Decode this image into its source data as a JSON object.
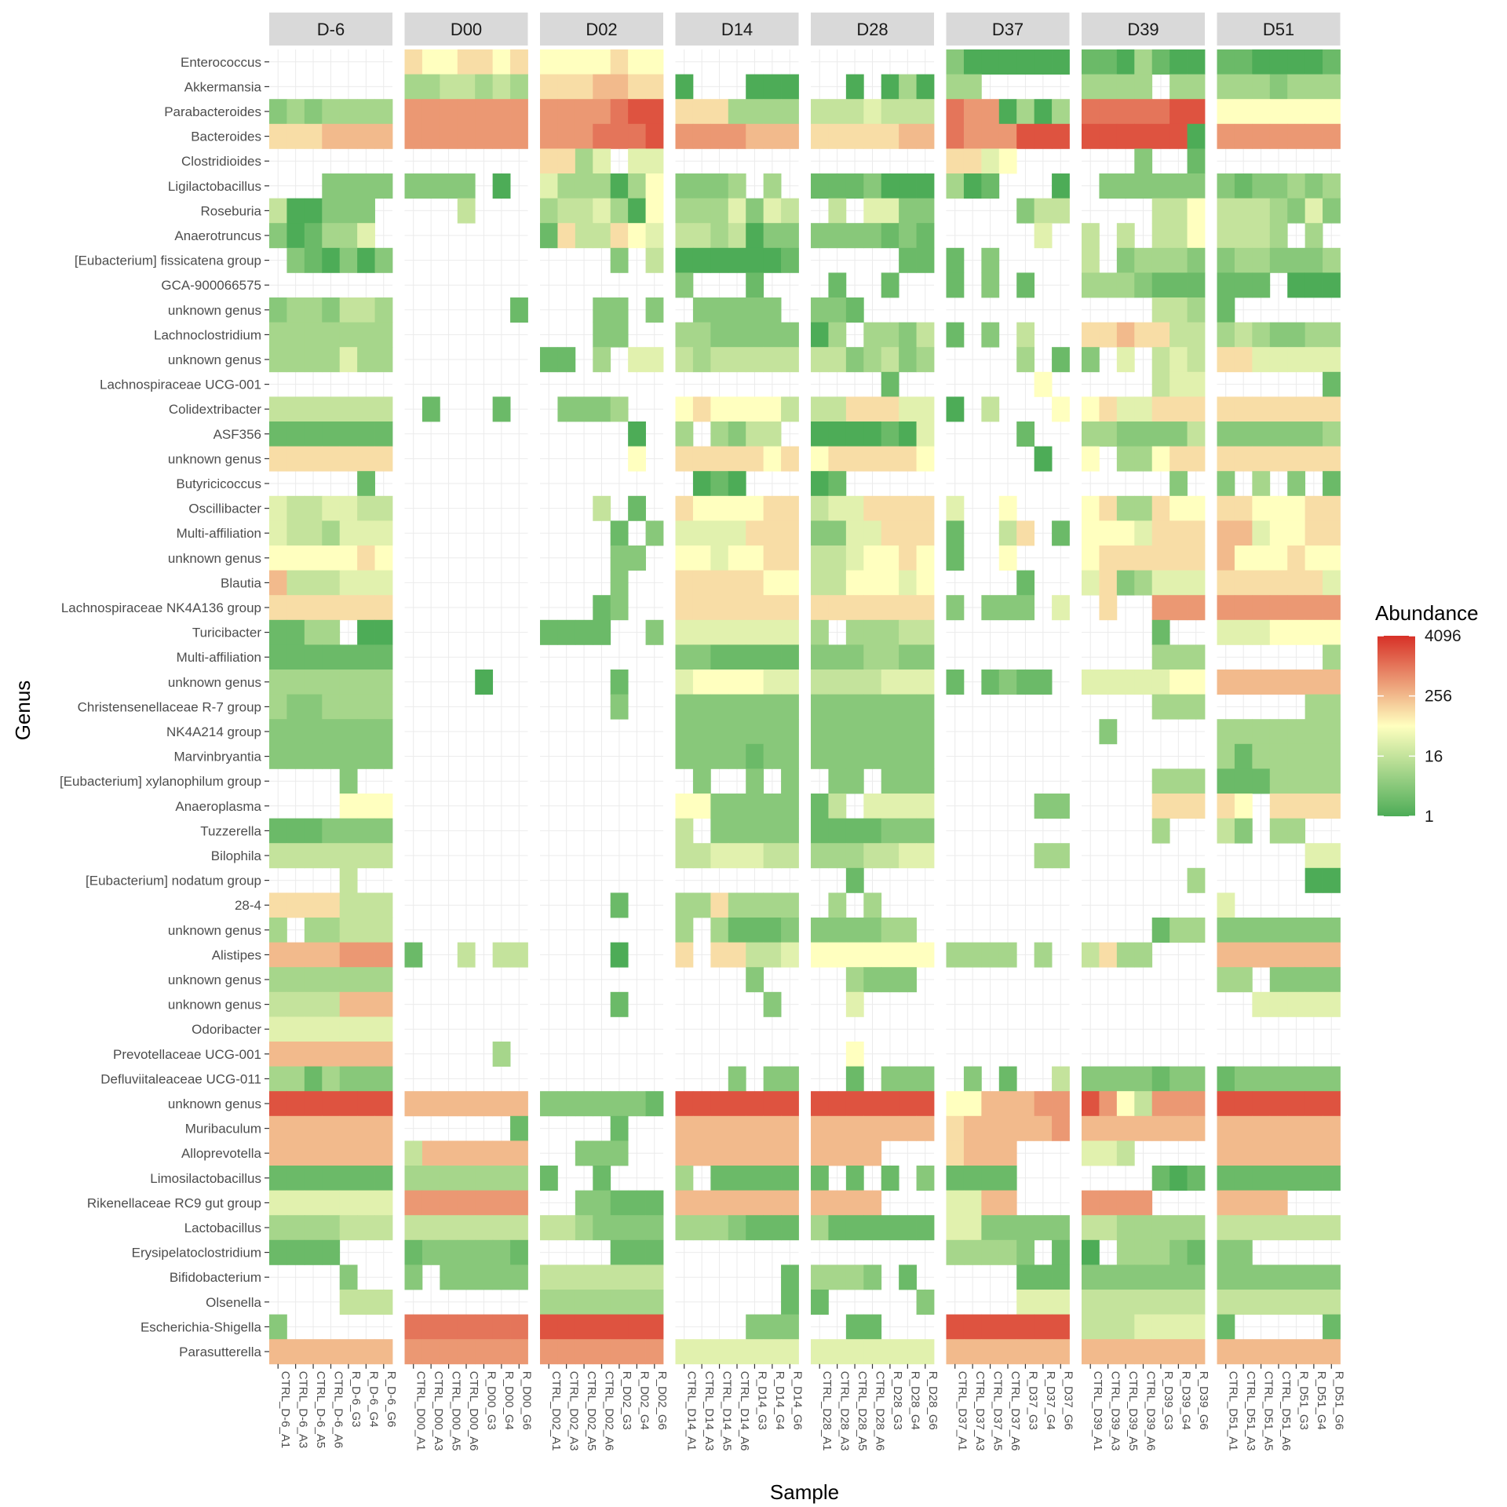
{
  "chart_data": {
    "type": "heatmap",
    "xlabel": "Sample",
    "ylabel": "Genus",
    "legend": {
      "title": "Abundance",
      "placement": "right",
      "ticks": [
        1,
        16,
        256,
        4096
      ],
      "scale": "log2"
    },
    "color_scale": {
      "low": "#4dac57",
      "mid": "#ffffbf",
      "high": "#d73027",
      "missing": "#ffffff"
    },
    "facets": [
      "D-6",
      "D00",
      "D02",
      "D14",
      "D28",
      "D37",
      "D39",
      "D51"
    ],
    "samples": [
      [
        "CTRL_D-6_A1",
        "CTRL_D-6_A3",
        "CTRL_D-6_A5",
        "CTRL_D-6_A6",
        "R_D-6_G3",
        "R_D-6_G4",
        "R_D-6_G6"
      ],
      [
        "CTRL_D00_A1",
        "CTRL_D00_A3",
        "CTRL_D00_A5",
        "CTRL_D00_A6",
        "R_D00_G3",
        "R_D00_G4",
        "R_D00_G6"
      ],
      [
        "CTRL_D02_A1",
        "CTRL_D02_A3",
        "CTRL_D02_A5",
        "CTRL_D02_A6",
        "R_D02_G3",
        "R_D02_G4",
        "R_D02_G6"
      ],
      [
        "CTRL_D14_A1",
        "CTRL_D14_A3",
        "CTRL_D14_A5",
        "CTRL_D14_A6",
        "R_D14_G3",
        "R_D14_G4",
        "R_D14_G6"
      ],
      [
        "CTRL_D28_A1",
        "CTRL_D28_A3",
        "CTRL_D28_A5",
        "CTRL_D28_A6",
        "R_D28_G3",
        "R_D28_G4",
        "R_D28_G6"
      ],
      [
        "CTRL_D37_A1",
        "CTRL_D37_A3",
        "CTRL_D37_A5",
        "CTRL_D37_A6",
        "R_D37_G3",
        "R_D37_G4",
        "R_D37_G6"
      ],
      [
        "CTRL_D39_A1",
        "CTRL_D39_A3",
        "CTRL_D39_A5",
        "CTRL_D39_A6",
        "R_D39_G3",
        "R_D39_G4",
        "R_D39_G6"
      ],
      [
        "CTRL_D51_A1",
        "CTRL_D51_A3",
        "CTRL_D51_A5",
        "CTRL_D51_A6",
        "R_D51_G3",
        "R_D51_G4",
        "R_D51_G6"
      ]
    ],
    "genera": [
      "Enterococcus",
      "Akkermansia",
      "Parabacteroides",
      "Bacteroides",
      "Clostridioides",
      "Ligilactobacillus",
      "Roseburia",
      "Anaerotruncus",
      "[Eubacterium] fissicatena group",
      "GCA-900066575",
      "unknown genus",
      "Lachnoclostridium",
      "unknown genus",
      "Lachnospiraceae UCG-001",
      "Colidextribacter",
      "ASF356",
      "unknown genus",
      "Butyricicoccus",
      "Oscillibacter",
      "Multi-affiliation",
      "unknown genus",
      "Blautia",
      "Lachnospiraceae NK4A136 group",
      "Turicibacter",
      "Multi-affiliation",
      "unknown genus",
      "Christensenellaceae R-7 group",
      "NK4A214 group",
      "Marvinbryantia",
      "[Eubacterium] xylanophilum group",
      "Anaeroplasma",
      "Tuzzerella",
      "Bilophila",
      "[Eubacterium] nodatum group",
      "28-4",
      "unknown genus",
      "Alistipes",
      "unknown genus",
      "unknown genus",
      "Odoribacter",
      "Prevotellaceae UCG-001",
      "Defluviitaleaceae UCG-011",
      "unknown genus",
      "Muribaculum",
      "Alloprevotella",
      "Limosilactobacillus",
      "Rikenellaceae RC9 gut group",
      "Lactobacillus",
      "Erysipelatoclostridium",
      "Bifidobacterium",
      "Olsenella",
      "Escherichia-Shigella",
      "Parasutterella"
    ],
    "log2_abundance": [
      [
        "-------",
        "7667767",
        "6666766",
        "-------",
        "-------",
        "2000000",
        "1103100",
        "1100001"
      ],
      [
        "-------",
        "3344343",
        "7778877",
        "0---000",
        "--0-030",
        "33-----",
        "3333-33",
        "3332333"
      ],
      [
        "2323333",
        "9999999",
        "9999ABB",
        "7773333",
        "4445444",
        "A990303",
        "AAAAABB",
        "6666666"
      ],
      [
        "7778888",
        "9999999",
        "999AAAB",
        "9999888",
        "7777788",
        "A999BBB",
        "BBBBBB0",
        "9999999"
      ],
      [
        "-------",
        "-------",
        "7735-55",
        "-------",
        "-------",
        "7756---",
        "---2--1",
        "-------"
      ],
      [
        "---2222",
        "2222-0-",
        "5333036",
        "2223-3-",
        "1112000",
        "301---0",
        "-222222",
        "2122323"
      ],
      [
        "400222-",
        "---4---",
        "3445306",
        "3335254",
        "-4-5522",
        "----244",
        "----446",
        "4443252"
      ],
      [
        "201335-",
        "-------",
        "1744765",
        "4434022",
        "2222121",
        "-----5-",
        "4-4-446",
        "4443-3-"
      ],
      [
        "-210202",
        "-------",
        "----2-4",
        "0000001",
        "-----11",
        "1-2----",
        "4-23332",
        "2332223"
      ],
      [
        "-------",
        "-------",
        "-------",
        "2---1--",
        "-1--1--",
        "1-2-1--",
        "3332111",
        "111-000"
      ],
      [
        "2332443",
        "------1",
        "---22-2",
        "-22222-",
        "221----",
        "-------",
        "----443",
        "1------"
      ],
      [
        "3333333",
        "-------",
        "---22--",
        "3322222",
        "03-3324",
        "1-2-4--",
        "7787744",
        "3432233"
      ],
      [
        "3333533",
        "-------",
        "11-3-55",
        "4344444",
        "4423423",
        "----3-1",
        "2-5-454",
        "7755555"
      ],
      [
        "-------",
        "-------",
        "-------",
        "-------",
        "----1--",
        "-----6-",
        "----455",
        "------1"
      ],
      [
        "4444444",
        "-1---1-",
        "-2223--",
        "6766664",
        "4477755",
        "0-4---6",
        "6755777",
        "7777777"
      ],
      [
        "1111111",
        "-------",
        "-----0-",
        "3-3244-",
        "0000105",
        "----1--",
        "3322224",
        "2222223"
      ],
      [
        "7777777",
        "-------",
        "-----6-",
        "7777767",
        "6777776",
        "-----0-",
        "6-33677",
        "7777777"
      ],
      [
        "-----1-",
        "-------",
        "-------",
        "-010---",
        "01-----",
        "-------",
        "-----2-",
        "2-3-2-1"
      ],
      [
        "5445544",
        "-------",
        "---4-1-",
        "7666677",
        "4557777",
        "5--6---",
        "6733766",
        "7766677"
      ],
      [
        "5443555",
        "-------",
        "----1-2",
        "5555777",
        "2255777",
        "1--47-1",
        "6665777",
        "8856677"
      ],
      [
        "6666676",
        "-------",
        "----22-",
        "6656677",
        "4456676",
        "1--6---",
        "6777777",
        "8666766"
      ],
      [
        "8444555",
        "-------",
        "----2--",
        "7777766",
        "4466656",
        "----1--",
        "5723555",
        "7777775"
      ],
      [
        "7777777",
        "-------",
        "---12--",
        "7777777",
        "7777777",
        "2-222-5",
        "-7--999",
        "9999999"
      ],
      [
        "1133-00",
        "-------",
        "1111--2",
        "5555555",
        "3-33344",
        "-------",
        "----1--",
        "5556666"
      ],
      [
        "1111111",
        "-------",
        "-------",
        "2211111",
        "2223322",
        "-------",
        "----333",
        "------3"
      ],
      [
        "3333333",
        "----0--",
        "----1--",
        "5666655",
        "4444555",
        "1-1211-",
        "5555566",
        "8888888"
      ],
      [
        "3223333",
        "-------",
        "----2--",
        "2222222",
        "2222222",
        "-------",
        "----333",
        "-----33"
      ],
      [
        "2222222",
        "-------",
        "-------",
        "2222222",
        "2222222",
        "-------",
        "-2-----",
        "3333333"
      ],
      [
        "2222222",
        "-------",
        "-------",
        "2222122",
        "2222222",
        "-------",
        "-------",
        "3133333"
      ],
      [
        "----2--",
        "-------",
        "-------",
        "-2--2-2",
        "-22-222",
        "-------",
        "----333",
        "1113333"
      ],
      [
        "----666",
        "-------",
        "-------",
        "6622222",
        "14-5555",
        "-----22",
        "----777",
        "76-7777"
      ],
      [
        "1112222",
        "-------",
        "-------",
        "4-22222",
        "1111222",
        "-------",
        "----3--",
        "42-33--"
      ],
      [
        "4444444",
        "-------",
        "-------",
        "4455544",
        "3334455",
        "-----33",
        "-------",
        "-----55"
      ],
      [
        "----4--",
        "-------",
        "-------",
        "-------",
        "--1----",
        "-------",
        "------3",
        "-----00"
      ],
      [
        "7777444",
        "-------",
        "----1--",
        "3373333",
        "-3-3---",
        "-------",
        "-------",
        "5------"
      ],
      [
        "3-33444",
        "-------",
        "-------",
        "3-31112",
        "222233-",
        "-------",
        "----133",
        "2222222"
      ],
      [
        "8888999",
        "1--4-44",
        "----0--",
        "7-77445",
        "6666666",
        "3333-3-",
        "4733---",
        "8888888"
      ],
      [
        "3333333",
        "-------",
        "-------",
        "----2--",
        "--3222-",
        "-------",
        "-------",
        "33-2222"
      ],
      [
        "4444888",
        "-------",
        "----1--",
        "-----2-",
        "--5----",
        "-------",
        "-------",
        "--55555"
      ],
      [
        "5555555",
        "-------",
        "-------",
        "-------",
        "-------",
        "-------",
        "-------",
        "-------"
      ],
      [
        "8888888",
        "-----3-",
        "-------",
        "-------",
        "--6----",
        "-------",
        "-------",
        "-------"
      ],
      [
        "3313222",
        "-------",
        "-------",
        "---2-22",
        "--1-222",
        "-2-1--4",
        "2222122",
        "1222222"
      ],
      [
        "BBBBBBB",
        "8888888",
        "2222221",
        "BBBBBBB",
        "BBBBBBB",
        "6688899",
        "B964999",
        "BBBBBBB"
      ],
      [
        "8888888",
        "------1",
        "----1--",
        "8888888",
        "8888888",
        "7888889",
        "8888888",
        "8888888"
      ],
      [
        "8888888",
        "4888888",
        "--222--",
        "8888888",
        "8888---",
        "7888---",
        "554----",
        "8888888"
      ],
      [
        "1111111",
        "3333333",
        "1--1---",
        "3-11111",
        "1-1-1-2",
        "1111---",
        "----101",
        "1111111"
      ],
      [
        "5555555",
        "9999999",
        "--22111",
        "8888888",
        "8888---",
        "5588---",
        "9999---",
        "8888---"
      ],
      [
        "3333444",
        "4444444",
        "4432222",
        "3332111",
        "3111111",
        "5522222",
        "4433333",
        "4444444"
      ],
      [
        "1111---",
        "1222221",
        "----111",
        "-------",
        "-------",
        "33332-1",
        "0-33321",
        "22-----"
      ],
      [
        "----2--",
        "2-22222",
        "4444444",
        "------1",
        "3332-1-",
        "----111",
        "2222222",
        "2222222"
      ],
      [
        "----444",
        "-------",
        "3333333",
        "------1",
        "1-----2",
        "----555",
        "4444444",
        "4444444"
      ],
      [
        "2------",
        "AAAAAAA",
        "BBBBBBB",
        "----222",
        "--11---",
        "BBBBBBB",
        "4445555",
        "1-----1"
      ],
      [
        "8888888",
        "9999999",
        "9999999",
        "5555555",
        "5555555",
        "8888888",
        "8888888",
        "8888888"
      ]
    ]
  }
}
